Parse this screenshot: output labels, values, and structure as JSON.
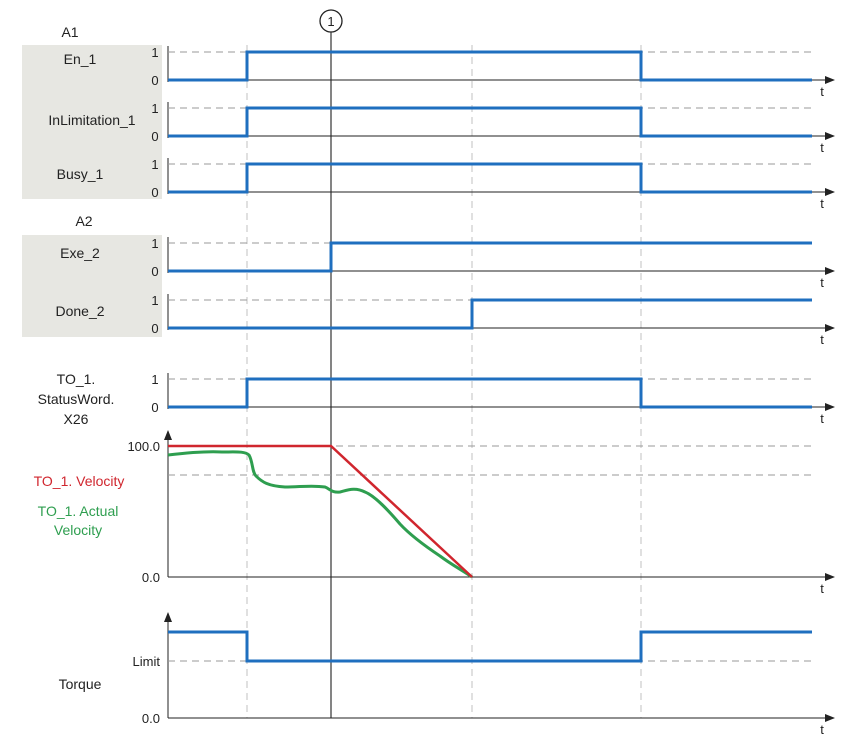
{
  "groups": {
    "a1": "A1",
    "a2": "A2"
  },
  "marker": "1",
  "colors": {
    "signal": "#1f6fbf",
    "velocity": "#d0262e",
    "actual_velocity": "#2e9e4f",
    "label_bg": "#e7e7e2",
    "dash": "#9a9a9a"
  },
  "signals": [
    {
      "id": "en1",
      "label": [
        "En_1"
      ],
      "high": "1",
      "low": "0",
      "edges": [
        [
          0,
          0
        ],
        [
          247,
          1
        ],
        [
          641,
          0
        ]
      ]
    },
    {
      "id": "inlim",
      "label": [
        "InLimitation_1"
      ],
      "high": "1",
      "low": "0",
      "edges": [
        [
          0,
          0
        ],
        [
          247,
          1
        ],
        [
          641,
          0
        ]
      ]
    },
    {
      "id": "busy1",
      "label": [
        "Busy_1"
      ],
      "high": "1",
      "low": "0",
      "edges": [
        [
          0,
          0
        ],
        [
          247,
          1
        ],
        [
          641,
          0
        ]
      ]
    },
    {
      "id": "exe2",
      "label": [
        "Exe_2"
      ],
      "high": "1",
      "low": "0",
      "edges": [
        [
          0,
          0
        ],
        [
          331,
          1
        ]
      ]
    },
    {
      "id": "done2",
      "label": [
        "Done_2"
      ],
      "high": "1",
      "low": "0",
      "edges": [
        [
          0,
          0
        ],
        [
          472,
          1
        ]
      ]
    },
    {
      "id": "status",
      "label": [
        "TO_1.",
        "StatusWord.",
        "X26"
      ],
      "high": "1",
      "low": "0",
      "edges": [
        [
          0,
          0
        ],
        [
          247,
          1
        ],
        [
          641,
          0
        ]
      ]
    }
  ],
  "velocity_panel": {
    "ymax_label": "100.0",
    "ymin_label": "0.0",
    "velocity_label": "TO_1. Velocity",
    "actual_label": [
      "TO_1. Actual",
      "Velocity"
    ]
  },
  "torque_panel": {
    "label": "Torque",
    "limit_label": "Limit",
    "zero_label": "0.0"
  },
  "time_axis_label": "t"
}
